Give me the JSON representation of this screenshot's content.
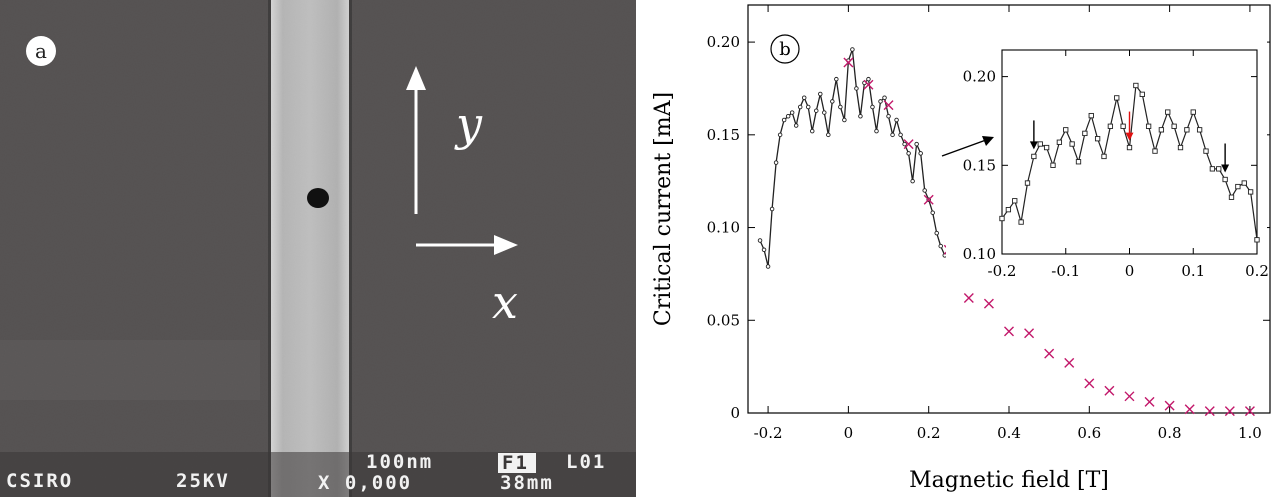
{
  "panel_a": {
    "label": "a",
    "axis_y": "y",
    "axis_x": "x",
    "footer": {
      "org": "CSIRO",
      "voltage": "25KV",
      "scale": "100nm",
      "frame": "F1",
      "line": "L01",
      "magnification": "X 0,000",
      "distance": "38mm"
    },
    "colors": {
      "background": "#4a4646",
      "strip": "#cfcfcf",
      "hole": "#111111"
    }
  },
  "chart_data": [
    {
      "type": "scatter",
      "panel_label": "b",
      "xlabel": "Magnetic field [T]",
      "ylabel": "Critical current [mA]",
      "xlim": [
        -0.25,
        1.05
      ],
      "ylim": [
        0,
        0.22
      ],
      "xticks": [
        -0.2,
        0,
        0.2,
        0.4,
        0.6,
        0.8,
        1.0
      ],
      "xtick_labels": [
        "-0.2",
        "0",
        "0.2",
        "0.4",
        "0.6",
        "0.8",
        "1.0"
      ],
      "yticks": [
        0,
        0.05,
        0.1,
        0.15,
        0.2
      ],
      "ytick_labels": [
        "0",
        "0.05",
        "0.10",
        "0.15",
        "0.20"
      ],
      "grid": false,
      "series": [
        {
          "marker": "line-with-small-circles",
          "color": "#222222",
          "x": [
            -0.22,
            -0.21,
            -0.2,
            -0.19,
            -0.18,
            -0.17,
            -0.16,
            -0.15,
            -0.14,
            -0.13,
            -0.12,
            -0.11,
            -0.1,
            -0.09,
            -0.08,
            -0.07,
            -0.06,
            -0.05,
            -0.04,
            -0.03,
            -0.02,
            -0.01,
            0,
            0.01,
            0.02,
            0.03,
            0.04,
            0.05,
            0.06,
            0.07,
            0.08,
            0.09,
            0.1,
            0.11,
            0.12,
            0.13,
            0.14,
            0.15,
            0.16,
            0.17,
            0.18,
            0.19,
            0.2,
            0.21,
            0.22,
            0.23,
            0.24
          ],
          "y": [
            0.093,
            0.088,
            0.079,
            0.11,
            0.135,
            0.15,
            0.158,
            0.16,
            0.162,
            0.155,
            0.165,
            0.17,
            0.165,
            0.152,
            0.163,
            0.172,
            0.162,
            0.15,
            0.168,
            0.18,
            0.165,
            0.158,
            0.19,
            0.196,
            0.175,
            0.16,
            0.178,
            0.18,
            0.165,
            0.152,
            0.168,
            0.17,
            0.16,
            0.15,
            0.158,
            0.15,
            0.145,
            0.14,
            0.125,
            0.145,
            0.14,
            0.12,
            0.115,
            0.108,
            0.097,
            0.09,
            0.085
          ]
        },
        {
          "marker": "x",
          "color": "#c2186a",
          "x": [
            0,
            0.05,
            0.1,
            0.15,
            0.2,
            0.25,
            0.3,
            0.35,
            0.4,
            0.45,
            0.5,
            0.55,
            0.6,
            0.65,
            0.7,
            0.75,
            0.8,
            0.85,
            0.9,
            0.95,
            1.0
          ],
          "y": [
            0.189,
            0.177,
            0.166,
            0.145,
            0.115,
            0.088,
            0.062,
            0.059,
            0.044,
            0.043,
            0.032,
            0.027,
            0.016,
            0.012,
            0.009,
            0.006,
            0.004,
            0.002,
            0.001,
            0.001,
            0.001
          ]
        }
      ]
    },
    {
      "type": "line",
      "role": "inset",
      "xlim": [
        -0.2,
        0.2
      ],
      "ylim": [
        0.1,
        0.215
      ],
      "xticks": [
        -0.2,
        -0.1,
        0,
        0.1,
        0.2
      ],
      "xtick_labels": [
        "-0.2",
        "-0.1",
        "0",
        "0.1",
        "0.2"
      ],
      "yticks": [
        0.1,
        0.15,
        0.2
      ],
      "ytick_labels": [
        "0.10",
        "0.15",
        "0.20"
      ],
      "arrows": [
        {
          "x": -0.15,
          "color": "#000000"
        },
        {
          "x": 0.0,
          "color": "#e01010"
        },
        {
          "x": 0.15,
          "color": "#000000"
        }
      ],
      "series": [
        {
          "marker": "square",
          "color": "#222222",
          "x": [
            -0.2,
            -0.19,
            -0.18,
            -0.17,
            -0.16,
            -0.15,
            -0.14,
            -0.13,
            -0.12,
            -0.11,
            -0.1,
            -0.09,
            -0.08,
            -0.07,
            -0.06,
            -0.05,
            -0.04,
            -0.03,
            -0.02,
            -0.01,
            0,
            0.01,
            0.02,
            0.03,
            0.04,
            0.05,
            0.06,
            0.07,
            0.08,
            0.09,
            0.1,
            0.11,
            0.12,
            0.13,
            0.14,
            0.15,
            0.16,
            0.17,
            0.18,
            0.19,
            0.2
          ],
          "y": [
            0.12,
            0.125,
            0.13,
            0.118,
            0.14,
            0.155,
            0.162,
            0.16,
            0.15,
            0.163,
            0.17,
            0.162,
            0.152,
            0.168,
            0.178,
            0.165,
            0.155,
            0.172,
            0.188,
            0.172,
            0.16,
            0.195,
            0.19,
            0.172,
            0.158,
            0.17,
            0.18,
            0.172,
            0.16,
            0.17,
            0.18,
            0.17,
            0.158,
            0.148,
            0.148,
            0.142,
            0.132,
            0.138,
            0.14,
            0.135,
            0.108
          ]
        }
      ]
    }
  ]
}
